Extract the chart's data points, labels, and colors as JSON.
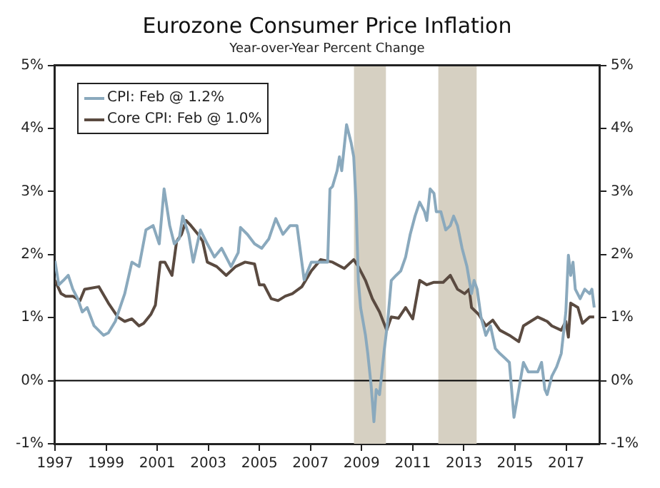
{
  "chart_data": {
    "type": "line",
    "title": "Eurozone Consumer Price Inflation",
    "subtitle": "Year-over-Year Percent Change",
    "xlim": [
      1997,
      2018.3
    ],
    "xticks": [
      1997,
      1999,
      2001,
      2003,
      2005,
      2007,
      2009,
      2011,
      2013,
      2015,
      2017
    ],
    "ylim": [
      -1,
      5
    ],
    "yticks": [
      {
        "value": -1,
        "label": "-1%"
      },
      {
        "value": 0,
        "label": "0%"
      },
      {
        "value": 1,
        "label": "1%"
      },
      {
        "value": 2,
        "label": "2%"
      },
      {
        "value": 3,
        "label": "3%"
      },
      {
        "value": 4,
        "label": "4%"
      },
      {
        "value": 5,
        "label": "5%"
      }
    ],
    "y2lim": [
      -1,
      5
    ],
    "y2ticks": [
      {
        "value": -1,
        "label": "-1%"
      },
      {
        "value": 0,
        "label": "0%"
      },
      {
        "value": 1,
        "label": "1%"
      },
      {
        "value": 2,
        "label": "2%"
      },
      {
        "value": 3,
        "label": "3%"
      },
      {
        "value": 4,
        "label": "4%"
      },
      {
        "value": 5,
        "label": "5%"
      }
    ],
    "grid": false,
    "legend": "top left",
    "marker": "none",
    "line_style": "solid",
    "bands": [
      {
        "axis": "x",
        "from": 2008.7,
        "to": 2009.95,
        "color": "#d6d0c2"
      },
      {
        "axis": "x",
        "from": 2012.0,
        "to": 2013.5,
        "color": "#d6d0c2"
      }
    ],
    "ref_lines": [
      {
        "axis": "y",
        "value": 0,
        "color": "#000000"
      }
    ],
    "series": [
      {
        "name": "CPI: Feb @ 1.2%",
        "color": "#8aa9bd",
        "x": [
          1997.0,
          1997.15,
          1997.33,
          1997.52,
          1997.7,
          1997.89,
          1998.07,
          1998.26,
          1998.53,
          1998.9,
          1999.09,
          1999.36,
          1999.73,
          2000.01,
          2000.29,
          2000.56,
          2000.84,
          2001.08,
          2001.27,
          2001.49,
          2001.67,
          2001.86,
          2002.0,
          2002.23,
          2002.41,
          2002.69,
          2002.96,
          2003.24,
          2003.52,
          2003.89,
          2004.17,
          2004.26,
          2004.53,
          2004.81,
          2005.09,
          2005.37,
          2005.64,
          2005.92,
          2006.2,
          2006.47,
          2006.75,
          2007.03,
          2007.4,
          2007.67,
          2007.76,
          2007.86,
          2008.04,
          2008.13,
          2008.22,
          2008.41,
          2008.59,
          2008.69,
          2008.78,
          2008.87,
          2008.96,
          2009.15,
          2009.24,
          2009.37,
          2009.48,
          2009.57,
          2009.7,
          2009.89,
          2010.02,
          2010.16,
          2010.35,
          2010.53,
          2010.72,
          2010.9,
          2011.09,
          2011.27,
          2011.46,
          2011.55,
          2011.68,
          2011.83,
          2011.92,
          2012.1,
          2012.29,
          2012.47,
          2012.6,
          2012.75,
          2012.93,
          2013.12,
          2013.3,
          2013.4,
          2013.52,
          2013.67,
          2013.86,
          2014.04,
          2014.23,
          2014.41,
          2014.6,
          2014.78,
          2014.96,
          2015.15,
          2015.33,
          2015.52,
          2015.7,
          2015.89,
          2016.04,
          2016.17,
          2016.26,
          2016.44,
          2016.63,
          2016.81,
          2016.99,
          2017.09,
          2017.18,
          2017.27,
          2017.36,
          2017.55,
          2017.73,
          2017.92,
          2018.01,
          2018.1
        ],
        "values": [
          1.9,
          1.52,
          1.59,
          1.67,
          1.45,
          1.3,
          1.09,
          1.16,
          0.87,
          0.72,
          0.76,
          0.94,
          1.38,
          1.88,
          1.81,
          2.39,
          2.46,
          2.17,
          3.04,
          2.46,
          2.17,
          2.25,
          2.61,
          2.32,
          1.88,
          2.39,
          2.17,
          1.96,
          2.1,
          1.81,
          2.03,
          2.43,
          2.32,
          2.17,
          2.1,
          2.25,
          2.57,
          2.32,
          2.46,
          2.46,
          1.6,
          1.88,
          1.88,
          1.88,
          3.04,
          3.08,
          3.33,
          3.55,
          3.33,
          4.06,
          3.77,
          3.55,
          2.83,
          1.59,
          1.16,
          0.72,
          0.43,
          -0.07,
          -0.65,
          -0.14,
          -0.22,
          0.51,
          0.94,
          1.59,
          1.67,
          1.74,
          1.96,
          2.32,
          2.61,
          2.83,
          2.68,
          2.54,
          3.04,
          2.97,
          2.68,
          2.68,
          2.39,
          2.46,
          2.61,
          2.46,
          2.1,
          1.81,
          1.38,
          1.59,
          1.45,
          1.01,
          0.72,
          0.87,
          0.51,
          0.43,
          0.36,
          0.29,
          -0.58,
          -0.14,
          0.29,
          0.14,
          0.14,
          0.14,
          0.29,
          -0.14,
          -0.22,
          0.07,
          0.22,
          0.43,
          1.09,
          1.99,
          1.67,
          1.88,
          1.45,
          1.3,
          1.45,
          1.38,
          1.45,
          1.16
        ]
      },
      {
        "name": "Core CPI: Feb @ 1.0%",
        "color": "#5a4a40",
        "x": [
          1997.0,
          1997.24,
          1997.42,
          1997.7,
          1997.98,
          1998.16,
          1998.72,
          1999.09,
          1999.46,
          1999.73,
          2000.01,
          2000.29,
          2000.47,
          2000.75,
          2000.93,
          2001.12,
          2001.3,
          2001.58,
          2001.76,
          2001.95,
          2002.13,
          2002.32,
          2002.6,
          2002.78,
          2002.96,
          2003.33,
          2003.7,
          2004.07,
          2004.44,
          2004.81,
          2005.0,
          2005.18,
          2005.46,
          2005.73,
          2006.01,
          2006.29,
          2006.66,
          2007.03,
          2007.4,
          2007.86,
          2008.32,
          2008.69,
          2008.87,
          2009.15,
          2009.42,
          2009.7,
          2009.98,
          2010.16,
          2010.44,
          2010.72,
          2011.0,
          2011.27,
          2011.55,
          2011.83,
          2012.19,
          2012.47,
          2012.75,
          2013.03,
          2013.21,
          2013.3,
          2013.58,
          2013.86,
          2014.13,
          2014.41,
          2014.78,
          2015.15,
          2015.33,
          2015.61,
          2015.89,
          2016.26,
          2016.44,
          2016.81,
          2016.99,
          2017.09,
          2017.18,
          2017.46,
          2017.64,
          2017.92,
          2018.1
        ],
        "values": [
          1.59,
          1.38,
          1.34,
          1.34,
          1.27,
          1.45,
          1.49,
          1.23,
          1.01,
          0.94,
          0.98,
          0.87,
          0.91,
          1.05,
          1.2,
          1.88,
          1.88,
          1.67,
          2.21,
          2.32,
          2.54,
          2.46,
          2.32,
          2.21,
          1.88,
          1.81,
          1.67,
          1.81,
          1.88,
          1.85,
          1.52,
          1.52,
          1.3,
          1.27,
          1.34,
          1.38,
          1.49,
          1.74,
          1.92,
          1.88,
          1.78,
          1.92,
          1.81,
          1.59,
          1.3,
          1.09,
          0.8,
          1.01,
          0.99,
          1.16,
          0.98,
          1.59,
          1.52,
          1.56,
          1.56,
          1.67,
          1.45,
          1.38,
          1.45,
          1.16,
          1.05,
          0.87,
          0.96,
          0.8,
          0.72,
          0.62,
          0.87,
          0.94,
          1.01,
          0.94,
          0.87,
          0.8,
          0.94,
          0.69,
          1.23,
          1.16,
          0.91,
          1.01,
          1.01
        ]
      }
    ]
  }
}
